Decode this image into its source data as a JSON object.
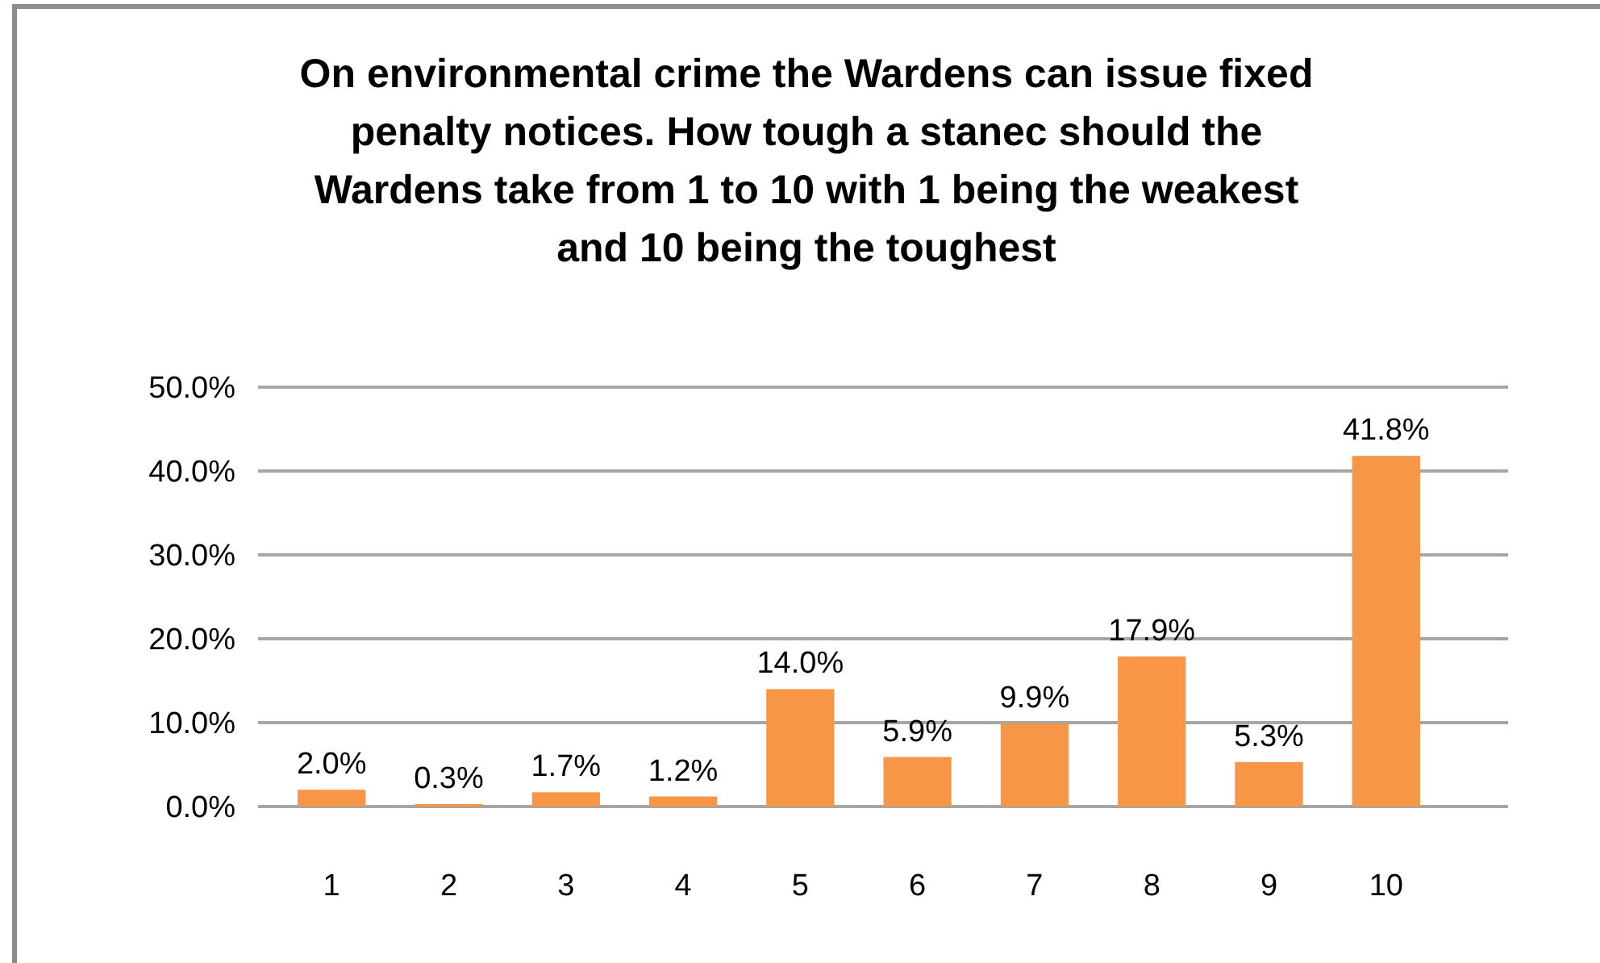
{
  "chart_data": {
    "type": "bar",
    "title": "On environmental crime the Wardens can issue fixed penalty notices. How tough a stanec should the Wardens take from 1 to 10 with 1 being the weakest and 10 being the toughest",
    "categories": [
      "1",
      "2",
      "3",
      "4",
      "5",
      "6",
      "7",
      "8",
      "9",
      "10"
    ],
    "values": [
      2.0,
      0.3,
      1.7,
      1.2,
      14.0,
      5.9,
      9.9,
      17.9,
      5.3,
      41.8
    ],
    "color": "#f79646",
    "value_labels": [
      "2.0%",
      "0.3%",
      "1.7%",
      "1.2%",
      "14.0%",
      "5.9%",
      "9.9%",
      "17.9%",
      "5.3%",
      "41.8%"
    ],
    "ylim": [
      0,
      50
    ],
    "yticks": [
      {
        "value": 0,
        "label": "0.0%"
      },
      {
        "value": 10,
        "label": "10.0%"
      },
      {
        "value": 20,
        "label": "20.0%"
      },
      {
        "value": 30,
        "label": "30.0%"
      },
      {
        "value": 40,
        "label": "40.0%"
      },
      {
        "value": 50,
        "label": "50.0%"
      }
    ],
    "grid": "y"
  }
}
